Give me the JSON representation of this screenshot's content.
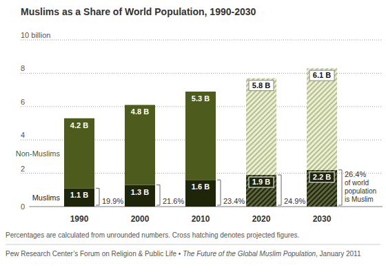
{
  "chart_data": {
    "type": "bar",
    "title": "Muslims as a Share of World Population, 1990-2030",
    "categories": [
      "1990",
      "2000",
      "2010",
      "2020",
      "2030"
    ],
    "stacked": true,
    "data_labels": true,
    "grid": true,
    "ylim": [
      0,
      10
    ],
    "yticks": [
      0,
      2,
      4,
      6,
      8,
      {
        "value": 10,
        "label": "10 billion"
      }
    ],
    "projected": [
      false,
      false,
      false,
      true,
      true
    ],
    "series": [
      {
        "name": "Muslims",
        "color": "#1f2509",
        "values": [
          1.1,
          1.3,
          1.6,
          1.9,
          2.2
        ],
        "value_labels": [
          "1.1 B",
          "1.3 B",
          "1.6 B",
          "1.9 B",
          "2.2 B"
        ]
      },
      {
        "name": "Non-Muslims",
        "color": "#4d5c1d",
        "values": [
          4.2,
          4.8,
          5.3,
          5.8,
          6.1
        ],
        "value_labels": [
          "4.2 B",
          "4.8 B",
          "5.3 B",
          "5.8 B",
          "6.1 B"
        ]
      }
    ],
    "muslim_share": {
      "values": [
        19.9,
        21.6,
        23.4,
        24.9,
        26.4
      ],
      "value_labels": [
        "19.9%",
        "21.6%",
        "23.4%",
        "24.9%",
        "26.4%"
      ],
      "note": "of world population is Muslim"
    },
    "notes": "Percentages are calculated from unrounded numbers. Cross hatching denotes projected figures.",
    "source": [
      "Pew Research Center’s Forum on Religion & Public Life • ",
      "The Future of the Global Muslim Population",
      ", January 2011"
    ]
  }
}
